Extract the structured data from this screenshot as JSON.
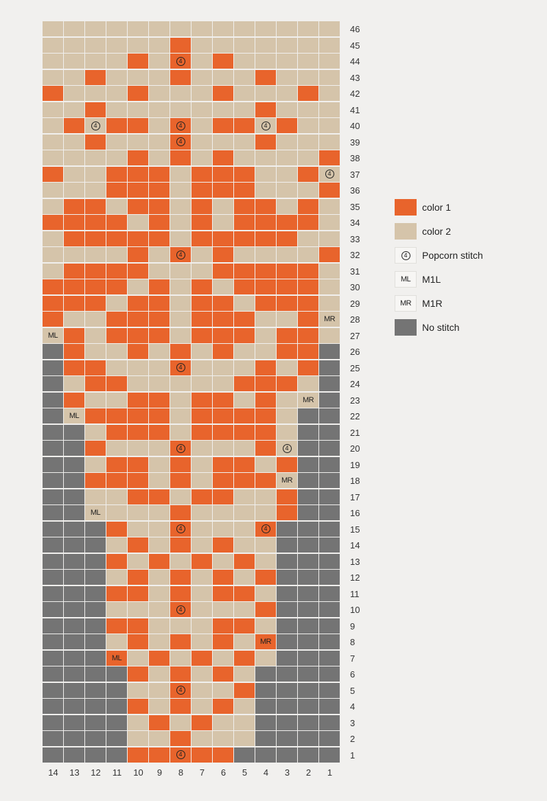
{
  "colors": {
    "c1": "#e8642c",
    "c2": "#d5c4aa",
    "ns": "#747474",
    "grid_line": "#ffffff"
  },
  "chart": {
    "columns": [
      "14",
      "13",
      "12",
      "11",
      "10",
      "9",
      "8",
      "7",
      "6",
      "5",
      "4",
      "3",
      "2",
      "1"
    ],
    "rows_top_to_bottom": [
      {
        "label": "46",
        "cells": "22222222222222",
        "marks": []
      },
      {
        "label": "45",
        "cells": "22222212222222",
        "marks": []
      },
      {
        "label": "44",
        "cells": "22221212122222",
        "marks": [
          {
            "col": 6,
            "text": "4",
            "kind": "popcorn"
          }
        ]
      },
      {
        "label": "43",
        "cells": "22122212221222",
        "marks": []
      },
      {
        "label": "42",
        "cells": "12221222122212",
        "marks": []
      },
      {
        "label": "41",
        "cells": "22122222221222",
        "marks": []
      },
      {
        "label": "40",
        "cells": "21211212112122",
        "marks": [
          {
            "col": 2,
            "text": "4",
            "kind": "popcorn"
          },
          {
            "col": 6,
            "text": "4",
            "kind": "popcorn"
          },
          {
            "col": 10,
            "text": "4",
            "kind": "popcorn"
          }
        ]
      },
      {
        "label": "39",
        "cells": "22122212221222",
        "marks": [
          {
            "col": 6,
            "text": "4",
            "kind": "popcorn"
          }
        ]
      },
      {
        "label": "38",
        "cells": "22221212122221",
        "marks": []
      },
      {
        "label": "37",
        "cells": "12211121112212",
        "marks": [
          {
            "col": 13,
            "text": "4",
            "kind": "popcorn"
          }
        ]
      },
      {
        "label": "36",
        "cells": "22211121112221",
        "marks": []
      },
      {
        "label": "35",
        "cells": "21121121211212",
        "marks": []
      },
      {
        "label": "34",
        "cells": "11112121211112",
        "marks": []
      },
      {
        "label": "33",
        "cells": "21111121111122",
        "marks": []
      },
      {
        "label": "32",
        "cells": "22221212122221",
        "marks": [
          {
            "col": 6,
            "text": "4",
            "kind": "popcorn"
          }
        ]
      },
      {
        "label": "31",
        "cells": "21111222111112",
        "marks": []
      },
      {
        "label": "30",
        "cells": "11112121211112",
        "marks": []
      },
      {
        "label": "29",
        "cells": "11121121121112",
        "marks": []
      },
      {
        "label": "28",
        "cells": "12211121112212",
        "marks": [
          {
            "col": 13,
            "text": "MR",
            "kind": "m1r"
          }
        ]
      },
      {
        "label": "27",
        "cells": "21211121112112",
        "marks": [
          {
            "col": 0,
            "text": "ML",
            "kind": "m1l"
          }
        ]
      },
      {
        "label": "26",
        "cells": "31221212122113",
        "marks": []
      },
      {
        "label": "25",
        "cells": "31122212221213",
        "marks": [
          {
            "col": 6,
            "text": "4",
            "kind": "popcorn"
          }
        ]
      },
      {
        "label": "24",
        "cells": "32112222211123",
        "marks": []
      },
      {
        "label": "23",
        "cells": "31221121121223",
        "marks": [
          {
            "col": 12,
            "text": "MR",
            "kind": "m1r"
          }
        ]
      },
      {
        "label": "22",
        "cells": "32111121111233",
        "marks": [
          {
            "col": 1,
            "text": "ML",
            "kind": "m1l"
          }
        ]
      },
      {
        "label": "21",
        "cells": "33211121111233",
        "marks": []
      },
      {
        "label": "20",
        "cells": "33122212221233",
        "marks": [
          {
            "col": 6,
            "text": "4",
            "kind": "popcorn"
          },
          {
            "col": 11,
            "text": "4",
            "kind": "popcorn"
          }
        ]
      },
      {
        "label": "19",
        "cells": "33211212112133",
        "marks": []
      },
      {
        "label": "18",
        "cells": "33111212111233",
        "marks": [
          {
            "col": 11,
            "text": "MR",
            "kind": "m1r"
          }
        ]
      },
      {
        "label": "17",
        "cells": "33221121122133",
        "marks": []
      },
      {
        "label": "16",
        "cells": "33222212222133",
        "marks": [
          {
            "col": 2,
            "text": "ML",
            "kind": "m1l"
          }
        ]
      },
      {
        "label": "15",
        "cells": "33312212221333",
        "marks": [
          {
            "col": 6,
            "text": "4",
            "kind": "popcorn"
          },
          {
            "col": 10,
            "text": "4",
            "kind": "popcorn"
          }
        ]
      },
      {
        "label": "14",
        "cells": "33321212122333",
        "marks": []
      },
      {
        "label": "13",
        "cells": "33312121212333",
        "marks": []
      },
      {
        "label": "12",
        "cells": "33321212121333",
        "marks": []
      },
      {
        "label": "11",
        "cells": "33311212112333",
        "marks": []
      },
      {
        "label": "10",
        "cells": "33322212221333",
        "marks": [
          {
            "col": 6,
            "text": "4",
            "kind": "popcorn"
          }
        ]
      },
      {
        "label": "9",
        "cells": "33311222112333",
        "marks": []
      },
      {
        "label": "8",
        "cells": "33321212121333",
        "marks": [
          {
            "col": 10,
            "text": "MR",
            "kind": "m1r"
          }
        ]
      },
      {
        "label": "7",
        "cells": "33312121212333",
        "marks": [
          {
            "col": 3,
            "text": "ML",
            "kind": "m1l"
          }
        ]
      },
      {
        "label": "6",
        "cells": "33331212123333",
        "marks": []
      },
      {
        "label": "5",
        "cells": "33332212213333",
        "marks": [
          {
            "col": 6,
            "text": "4",
            "kind": "popcorn"
          }
        ]
      },
      {
        "label": "4",
        "cells": "33331212123333",
        "marks": []
      },
      {
        "label": "3",
        "cells": "33332121223333",
        "marks": []
      },
      {
        "label": "2",
        "cells": "33332212223333",
        "marks": []
      },
      {
        "label": "1",
        "cells": "33331111133333",
        "marks": [
          {
            "col": 6,
            "text": "4",
            "kind": "popcorn"
          }
        ]
      }
    ]
  },
  "legend": [
    {
      "swatch": "c1",
      "symbol": "",
      "kind": "color",
      "label": "color 1"
    },
    {
      "swatch": "c2",
      "symbol": "",
      "kind": "color",
      "label": "color 2"
    },
    {
      "swatch": "",
      "symbol": "4",
      "kind": "popcorn",
      "label": "Popcorn stitch"
    },
    {
      "swatch": "",
      "symbol": "ML",
      "kind": "m1l",
      "label": "M1L"
    },
    {
      "swatch": "",
      "symbol": "MR",
      "kind": "m1r",
      "label": "M1R"
    },
    {
      "swatch": "ns",
      "symbol": "",
      "kind": "color",
      "label": "No stitch"
    }
  ]
}
